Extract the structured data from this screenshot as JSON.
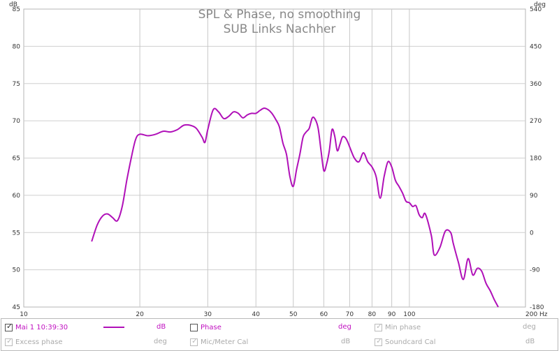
{
  "chart_data": {
    "type": "line",
    "title": "SPL & Phase, no smoothing",
    "subtitle": "SUB Links Nachher",
    "xlabel": "Hz",
    "ylabel": "dB",
    "y2label": "deg",
    "xscale": "log",
    "xlim": [
      10,
      200
    ],
    "ylim": [
      45,
      85
    ],
    "y2lim": [
      -180,
      540
    ],
    "x_ticks": [
      10,
      20,
      30,
      40,
      50,
      60,
      70,
      80,
      90,
      100,
      200
    ],
    "x_tick_labels": [
      "10",
      "20",
      "30",
      "40",
      "50",
      "60",
      "70",
      "80",
      "90",
      "100",
      "200 Hz"
    ],
    "y_ticks": [
      45,
      50,
      55,
      60,
      65,
      70,
      75,
      80,
      85
    ],
    "y2_ticks": [
      -180,
      -90,
      0,
      90,
      180,
      270,
      360,
      450,
      540
    ],
    "grid": true,
    "series": [
      {
        "name": "Mai 1 10:39:30",
        "color": "#b010b8",
        "x": [
          15,
          15.5,
          16,
          16.5,
          17,
          17.5,
          18,
          18.5,
          19,
          19.5,
          20,
          21,
          22,
          23,
          24,
          25,
          26,
          27,
          28,
          29,
          29.5,
          30,
          31,
          32,
          33,
          34,
          35,
          36,
          37,
          38,
          39,
          40,
          41,
          42,
          43,
          44,
          45,
          46,
          47,
          48,
          49,
          50,
          51,
          52,
          53,
          54,
          55,
          56,
          57,
          58,
          59,
          60,
          61,
          62,
          63,
          64,
          65,
          66,
          67,
          68,
          69,
          70,
          72,
          74,
          76,
          78,
          80,
          82,
          84,
          86,
          88,
          90,
          92,
          94,
          96,
          98,
          100,
          102,
          104,
          106,
          108,
          110,
          114,
          116,
          120,
          124,
          128,
          130,
          134,
          138,
          142,
          146,
          150,
          154,
          158,
          162,
          166,
          170
        ],
        "values": [
          53.8,
          56.0,
          57.2,
          57.5,
          57.0,
          56.6,
          58.5,
          62.0,
          65.0,
          67.5,
          68.2,
          68.0,
          68.2,
          68.6,
          68.5,
          68.8,
          69.4,
          69.4,
          69.0,
          67.8,
          67.1,
          68.8,
          71.5,
          71.2,
          70.3,
          70.6,
          71.2,
          71.0,
          70.4,
          70.8,
          71.0,
          71.0,
          71.4,
          71.7,
          71.5,
          71.0,
          70.2,
          69.2,
          67.0,
          65.5,
          62.5,
          61.2,
          63.5,
          65.5,
          67.8,
          68.5,
          69.0,
          70.4,
          70.2,
          69.0,
          66.0,
          63.3,
          64.2,
          66.0,
          68.8,
          68.0,
          66.0,
          66.8,
          67.8,
          67.8,
          67.3,
          66.5,
          65.0,
          64.5,
          65.7,
          64.5,
          63.8,
          62.5,
          59.6,
          62.5,
          64.5,
          63.8,
          62.0,
          61.2,
          60.3,
          59.2,
          59.0,
          58.5,
          58.6,
          57.4,
          57.0,
          57.5,
          54.6,
          52.0,
          53.0,
          55.2,
          55.0,
          53.5,
          51.0,
          48.7,
          51.5,
          49.3,
          50.2,
          49.8,
          48.2,
          47.2,
          46.0,
          45.0
        ]
      }
    ]
  },
  "legend": {
    "row1": [
      {
        "label": "Mai 1 10:39:30",
        "unit": "dB",
        "checked": true
      },
      {
        "label": "Phase",
        "unit": "deg",
        "checked": false
      },
      {
        "label": "Min phase",
        "unit": "deg",
        "checked": true
      }
    ],
    "row2": [
      {
        "label": "Excess phase",
        "unit": "deg",
        "checked": true
      },
      {
        "label": "Mic/Meter Cal",
        "unit": "dB",
        "checked": true
      },
      {
        "label": "Soundcard Cal",
        "unit": "dB",
        "checked": true
      }
    ]
  }
}
